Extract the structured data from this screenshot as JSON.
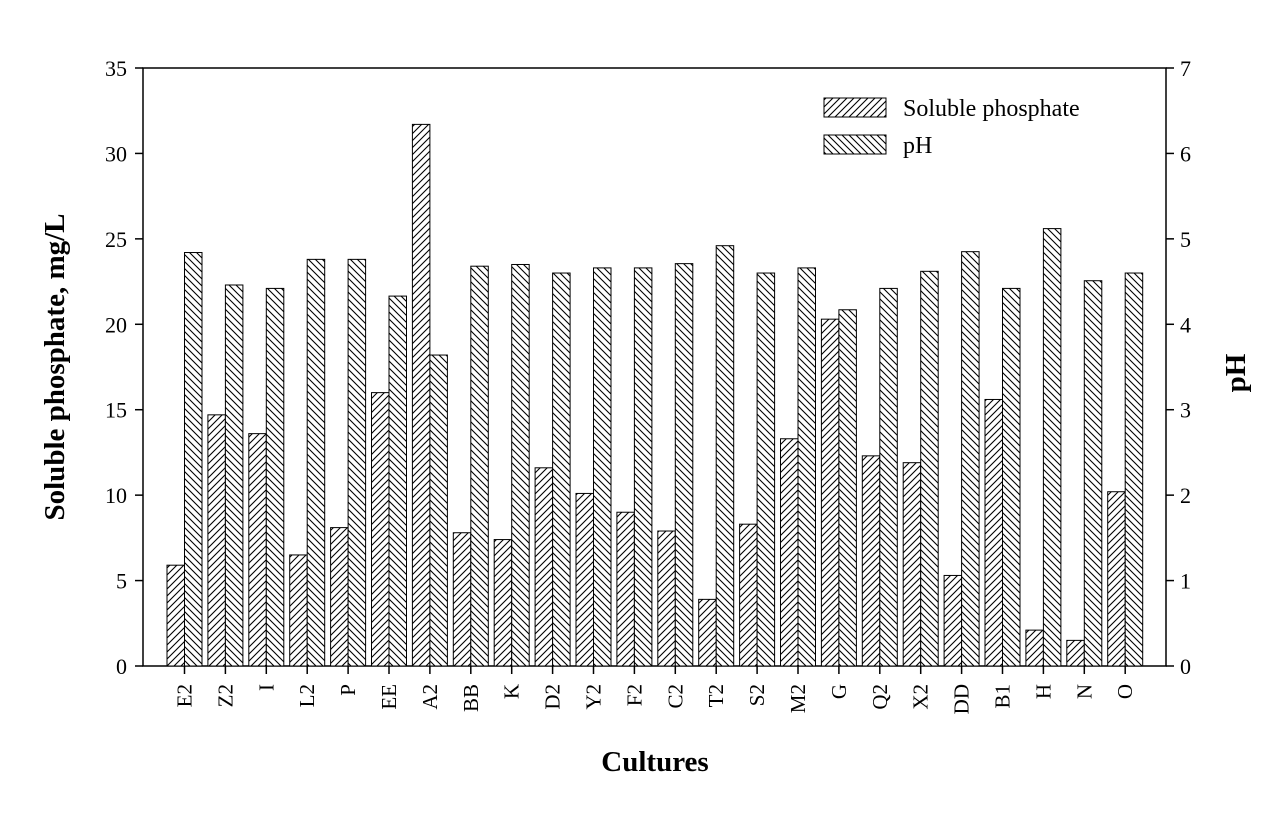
{
  "chart_data": {
    "type": "bar",
    "xlabel": "Cultures",
    "ylabel": "Soluble phosphate, mg/L",
    "y2label": "pH",
    "ylim": [
      0,
      35
    ],
    "y2lim": [
      0,
      7
    ],
    "yticks": [
      "0",
      "5",
      "10",
      "15",
      "20",
      "25",
      "30",
      "35"
    ],
    "y2ticks": [
      "0",
      "1",
      "2",
      "3",
      "4",
      "5",
      "6",
      "7"
    ],
    "grid": false,
    "legend_position": "top-right",
    "categories": [
      "E2",
      "Z2",
      "I",
      "L2",
      "P",
      "EE",
      "A2",
      "BB",
      "K",
      "D2",
      "Y2",
      "F2",
      "C2",
      "T2",
      "S2",
      "M2",
      "G",
      "Q2",
      "X2",
      "DD",
      "B1",
      "H",
      "N",
      "O"
    ],
    "series": [
      {
        "name": "Soluble phosphate",
        "axis": "left",
        "pattern": "forward-diagonal",
        "values": [
          5.9,
          14.7,
          13.6,
          6.5,
          8.1,
          16.0,
          31.7,
          7.8,
          7.4,
          11.6,
          10.1,
          9.0,
          7.9,
          3.9,
          8.3,
          13.3,
          20.3,
          12.3,
          11.9,
          5.3,
          15.6,
          2.1,
          1.5,
          10.2
        ]
      },
      {
        "name": "pH",
        "axis": "right",
        "pattern": "back-diagonal",
        "values": [
          4.84,
          4.46,
          4.42,
          4.76,
          4.76,
          4.33,
          3.64,
          4.68,
          4.7,
          4.6,
          4.66,
          4.66,
          4.71,
          4.92,
          4.6,
          4.66,
          4.17,
          4.42,
          4.62,
          4.85,
          4.42,
          5.12,
          4.51,
          4.6
        ]
      }
    ]
  }
}
